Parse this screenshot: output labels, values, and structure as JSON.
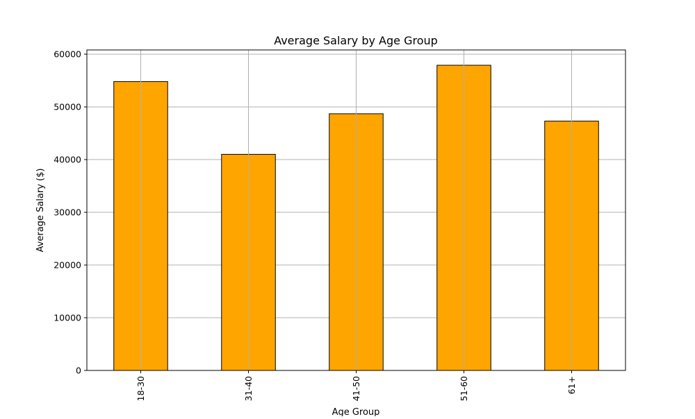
{
  "chart_data": {
    "type": "bar",
    "title": "Average Salary by Age Group",
    "xlabel": "Age Group",
    "ylabel": "Average Salary ($)",
    "categories": [
      "18-30",
      "31-40",
      "41-50",
      "51-60",
      "61+"
    ],
    "values": [
      54800,
      41000,
      48700,
      57900,
      47300
    ],
    "ylim": [
      0,
      60800
    ],
    "yticks": [
      0,
      10000,
      20000,
      30000,
      40000,
      50000,
      60000
    ],
    "grid": true,
    "legend": "none",
    "colors": {
      "bar_fill": "#ffa500",
      "bar_edge": "#000000",
      "grid": "#b0b0b0",
      "axes": "#000000"
    }
  }
}
